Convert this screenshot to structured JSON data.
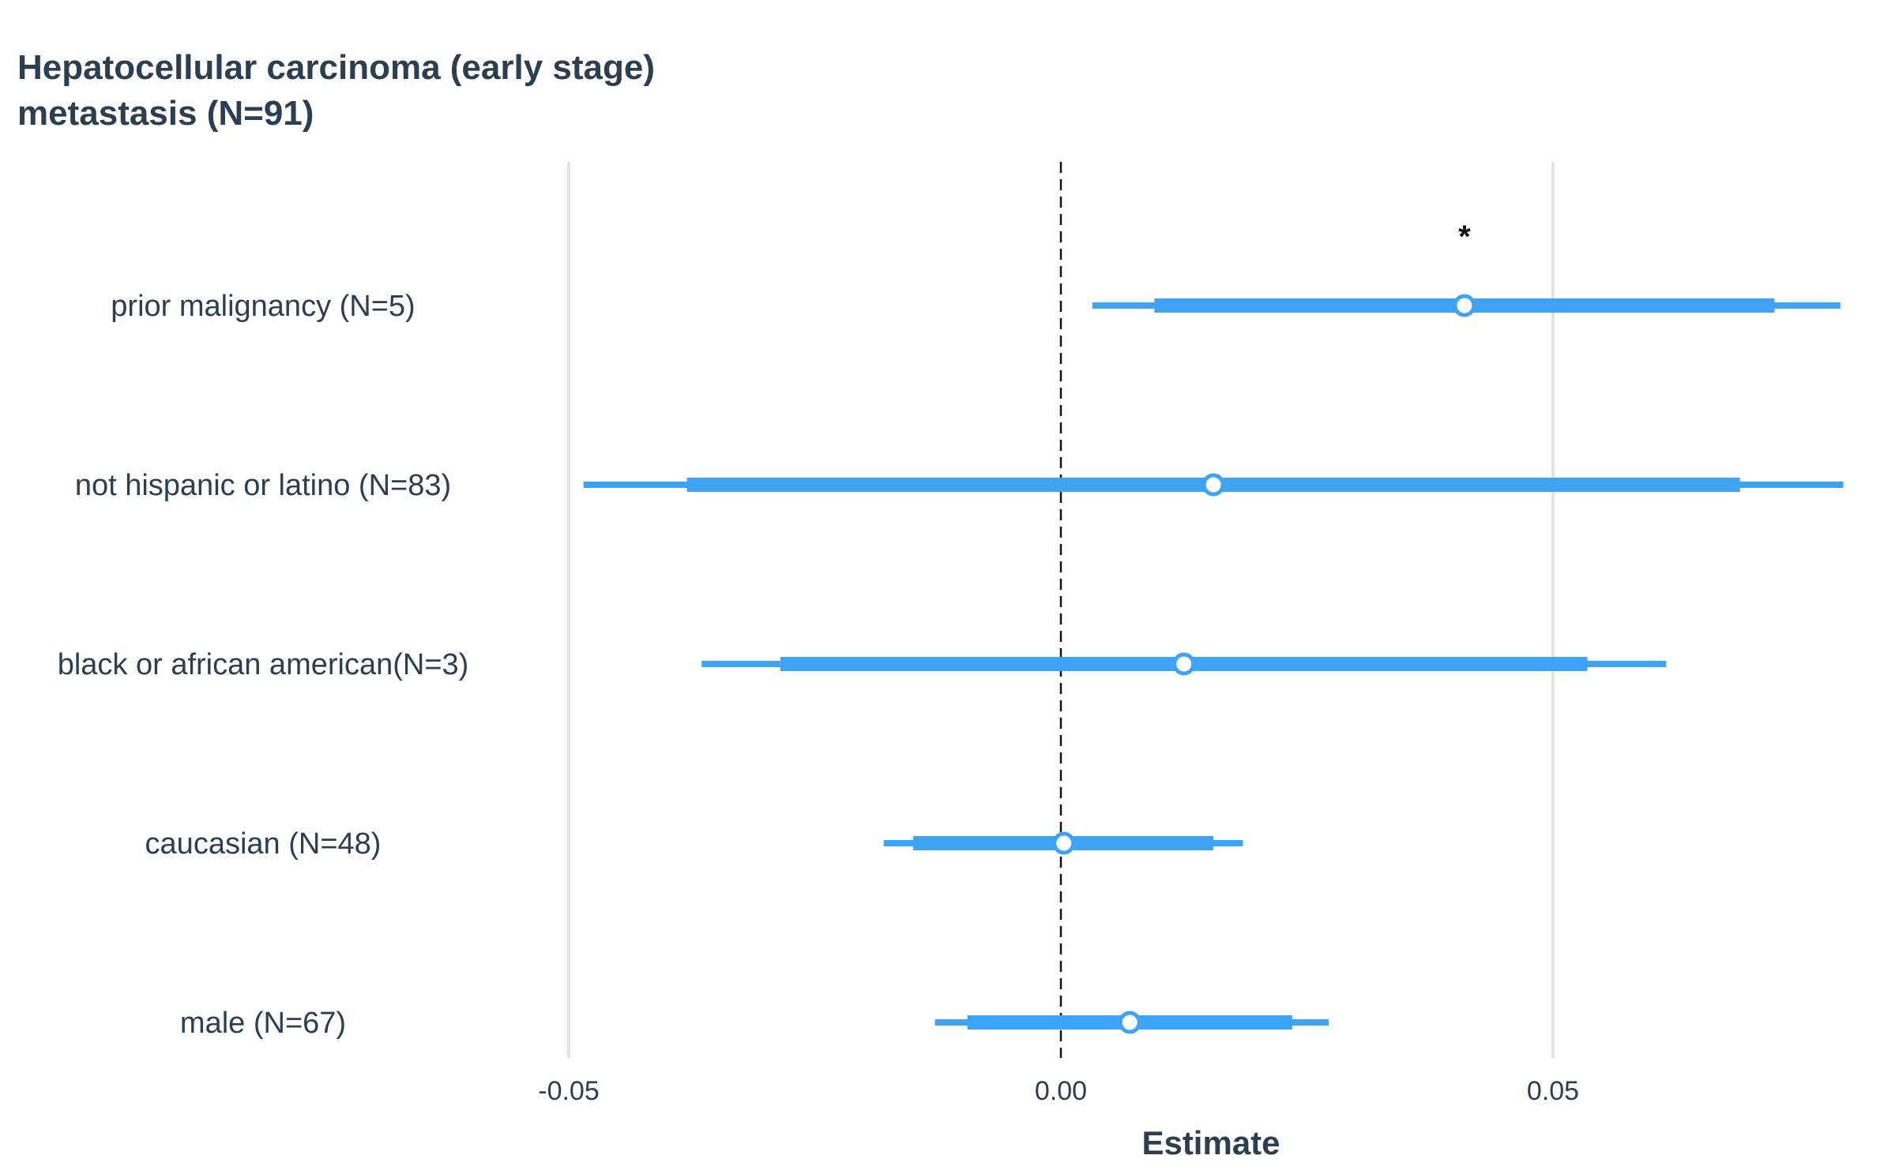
{
  "chart_data": {
    "type": "forest",
    "title_lines": [
      "Hepatocellular carcinoma (early stage)",
      "metastasis (N=91)"
    ],
    "xlabel": "Estimate",
    "ylabel": "",
    "xlim": [
      -0.05,
      0.08
    ],
    "x_ticks": [
      -0.05,
      0.0,
      0.05
    ],
    "x_tick_labels": [
      "-0.05",
      "0.00",
      "0.05"
    ],
    "reference_line": 0.0,
    "grid": "vertical major gridlines",
    "rows": [
      {
        "label": "prior malignancy (N=5)",
        "estimate": 0.041,
        "ci_inner": [
          0.0095,
          0.0725
        ],
        "ci_outer": [
          0.0032,
          0.0792
        ],
        "significant": true,
        "sig_marker": "*"
      },
      {
        "label": "not hispanic or latino (N=83)",
        "estimate": 0.0155,
        "ci_inner": [
          -0.038,
          0.069
        ],
        "ci_outer": [
          -0.0485,
          0.0795
        ],
        "significant": false,
        "sig_marker": ""
      },
      {
        "label": "black or african american(N=3)",
        "estimate": 0.0125,
        "ci_inner": [
          -0.0285,
          0.0535
        ],
        "ci_outer": [
          -0.0365,
          0.0615
        ],
        "significant": false,
        "sig_marker": ""
      },
      {
        "label": "caucasian (N=48)",
        "estimate": 0.0003,
        "ci_inner": [
          -0.015,
          0.0155
        ],
        "ci_outer": [
          -0.018,
          0.0185
        ],
        "significant": false,
        "sig_marker": ""
      },
      {
        "label": "male (N=67)",
        "estimate": 0.007,
        "ci_inner": [
          -0.0095,
          0.0235
        ],
        "ci_outer": [
          -0.0128,
          0.0272
        ],
        "significant": false,
        "sig_marker": ""
      }
    ],
    "colors": {
      "density_fill": "#7fc1fb",
      "interval": "#3fa3f5",
      "point_fill": "#ffffff",
      "point_stroke": "#3fa3f5",
      "grid": "#e2e2e2",
      "reference": "#111111",
      "text": "#2c3e50"
    }
  }
}
